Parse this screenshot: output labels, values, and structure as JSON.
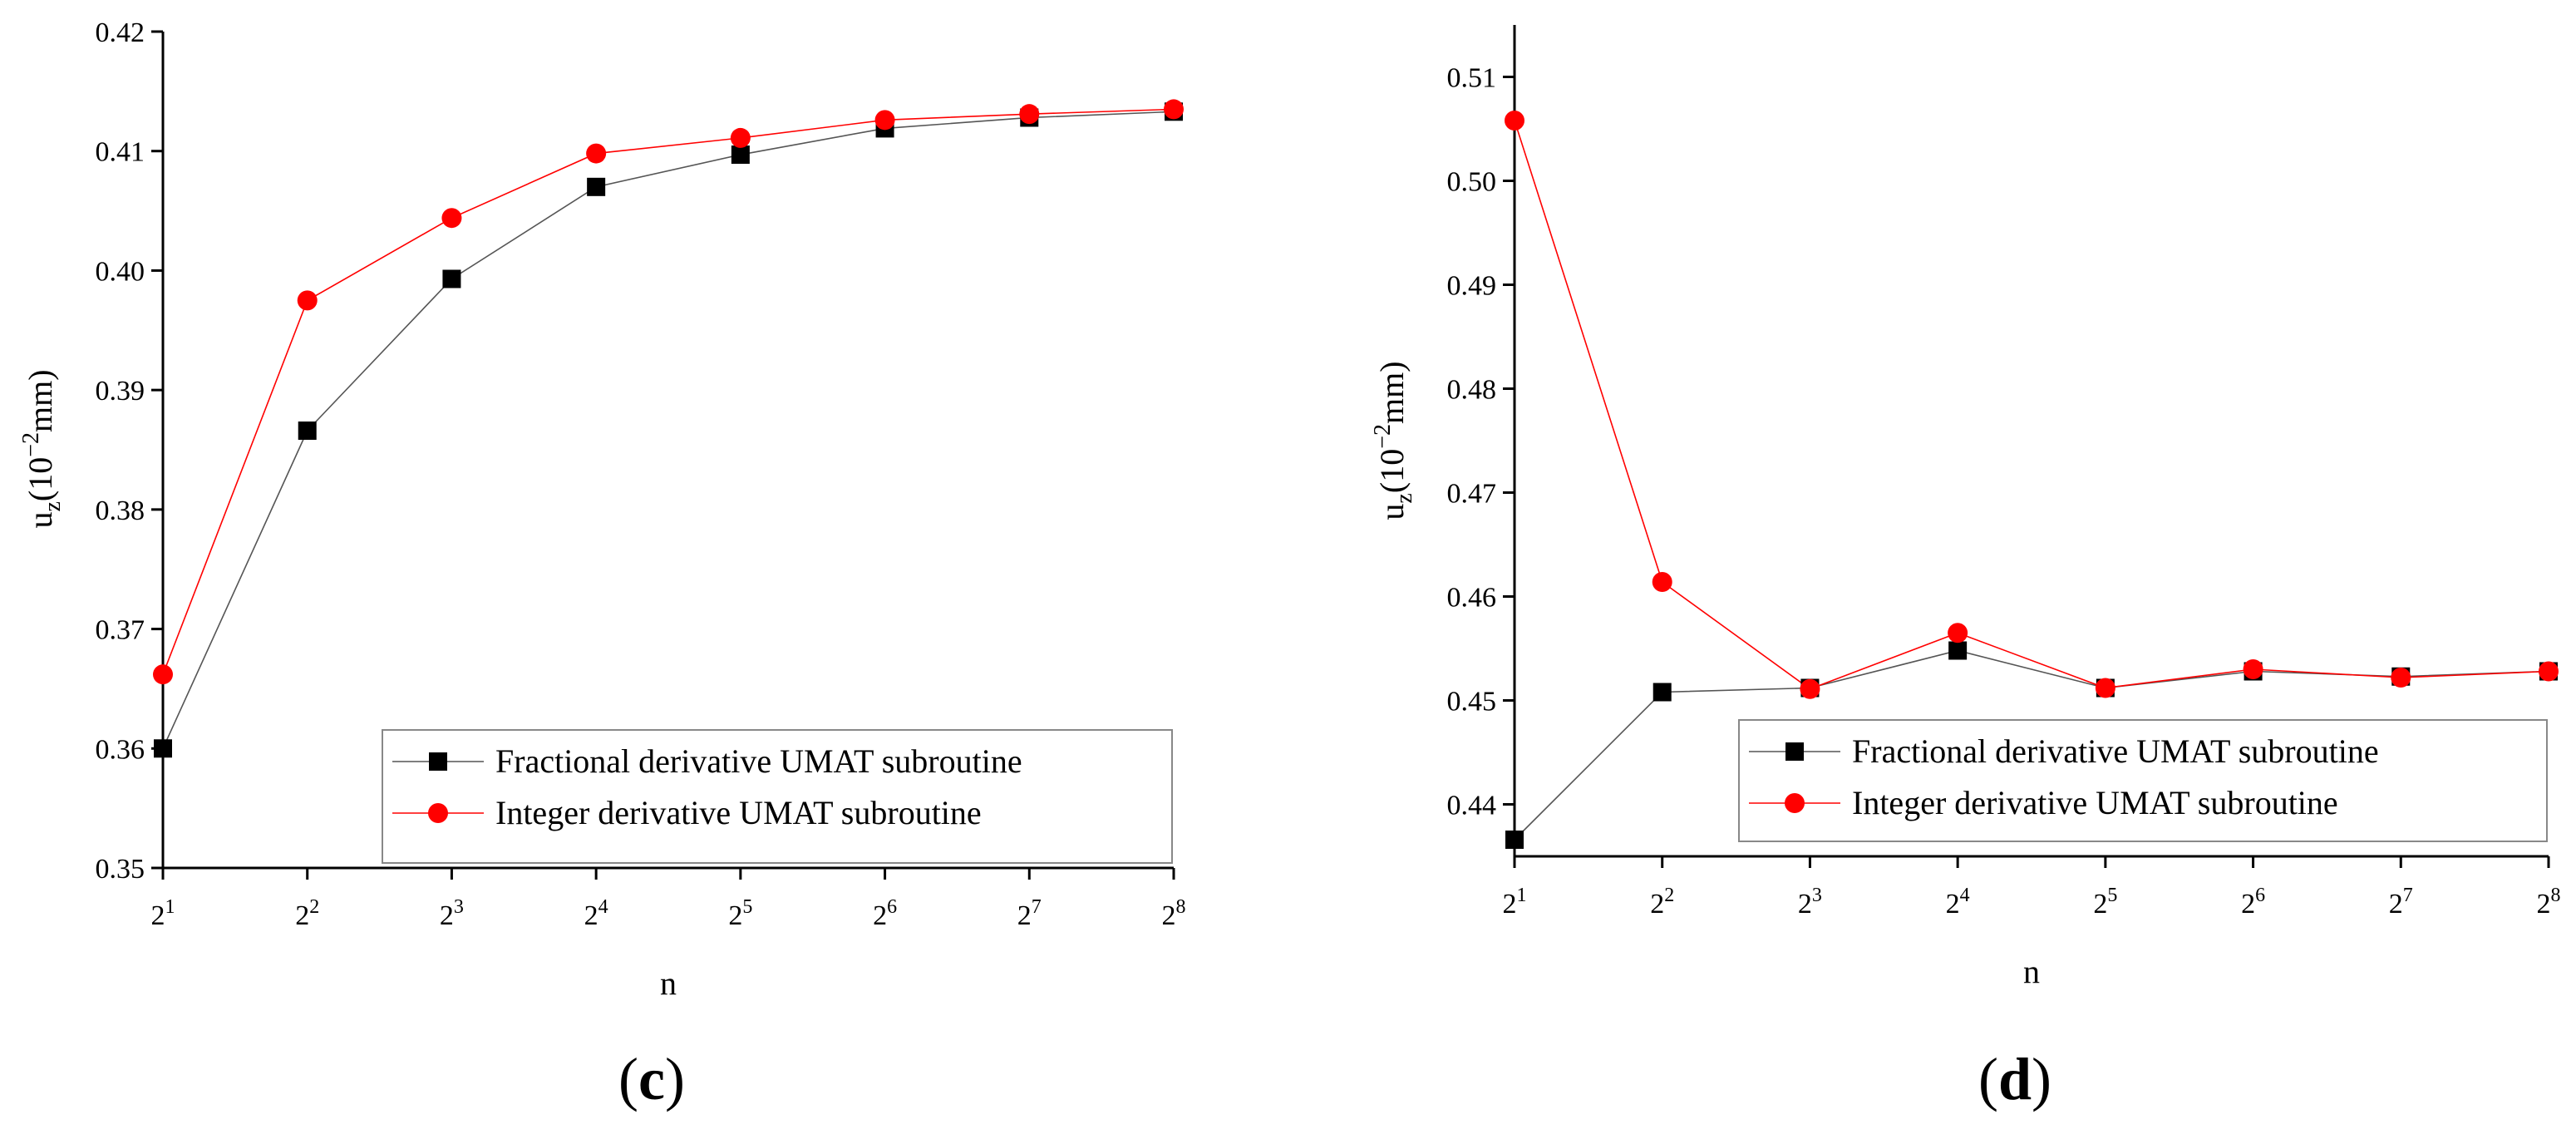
{
  "chart_data": [
    {
      "type": "line",
      "panel_label": "c",
      "title": "",
      "xlabel": "n",
      "ylabel_base": "u",
      "ylabel_sub": "z",
      "ylabel_open": "(10",
      "ylabel_sup": "−2",
      "ylabel_close": "mm)",
      "x": [
        1,
        2,
        3,
        4,
        5,
        6,
        7,
        8
      ],
      "x_tick_base": "2",
      "x_tick_exponents": [
        "1",
        "2",
        "3",
        "4",
        "5",
        "6",
        "7",
        "8"
      ],
      "xlim": [
        1,
        8
      ],
      "ylim": [
        0.35,
        0.42
      ],
      "y_ticks": [
        0.35,
        0.36,
        0.37,
        0.38,
        0.39,
        0.4,
        0.41,
        0.42
      ],
      "y_tick_labels": [
        "0.35",
        "0.36",
        "0.37",
        "0.38",
        "0.39",
        "0.40",
        "0.41",
        "0.42"
      ],
      "legend_position": "bottom-right",
      "series": [
        {
          "name": "Fractional derivative UMAT subroutine",
          "marker": "square",
          "color": "#000000",
          "values": [
            0.36,
            0.3866,
            0.3993,
            0.407,
            0.4097,
            0.4119,
            0.4128,
            0.4133
          ]
        },
        {
          "name": "Integer derivative UMAT subroutine",
          "marker": "circle",
          "color": "#ff0000",
          "values": [
            0.3662,
            0.3975,
            0.4044,
            0.4098,
            0.4111,
            0.4126,
            0.4131,
            0.4135
          ]
        }
      ]
    },
    {
      "type": "line",
      "panel_label": "d",
      "title": "",
      "xlabel": "n",
      "ylabel_base": "u",
      "ylabel_sub": "z",
      "ylabel_open": "(10",
      "ylabel_sup": "−2",
      "ylabel_close": "mm)",
      "x": [
        1,
        2,
        3,
        4,
        5,
        6,
        7,
        8
      ],
      "x_tick_base": "2",
      "x_tick_exponents": [
        "1",
        "2",
        "3",
        "4",
        "5",
        "6",
        "7",
        "8"
      ],
      "xlim": [
        1,
        8
      ],
      "ylim": [
        0.435,
        0.515
      ],
      "y_ticks": [
        0.44,
        0.45,
        0.46,
        0.47,
        0.48,
        0.49,
        0.5,
        0.51
      ],
      "y_tick_labels": [
        "0.44",
        "0.45",
        "0.46",
        "0.47",
        "0.48",
        "0.49",
        "0.50",
        "0.51"
      ],
      "legend_position": "bottom-right",
      "series": [
        {
          "name": "Fractional derivative UMAT subroutine",
          "marker": "square",
          "color": "#000000",
          "values": [
            0.4366,
            0.4508,
            0.4512,
            0.4548,
            0.4512,
            0.4528,
            0.4523,
            0.4528
          ]
        },
        {
          "name": "Integer derivative UMAT subroutine",
          "marker": "circle",
          "color": "#ff0000",
          "values": [
            0.5058,
            0.4614,
            0.4511,
            0.4565,
            0.4512,
            0.453,
            0.4522,
            0.4528
          ]
        }
      ]
    }
  ]
}
